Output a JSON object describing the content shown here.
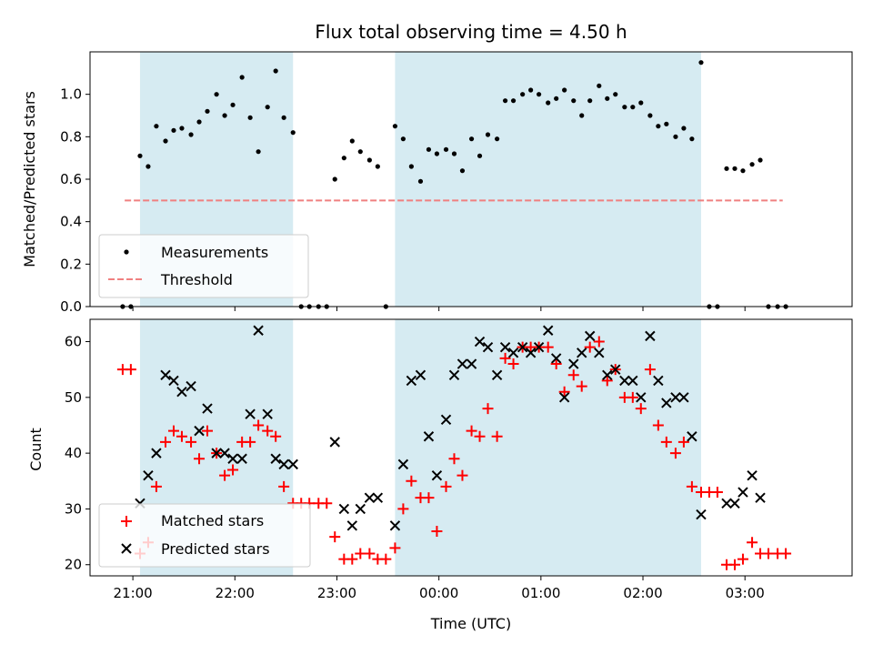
{
  "chart_data": {
    "type": "scatter",
    "title": "Flux total observing time = 4.50 h",
    "xlabel": "Time (UTC)",
    "x_tick_labels": [
      "21:00",
      "22:00",
      "23:00",
      "00:00",
      "01:00",
      "02:00",
      "03:00"
    ],
    "x_tick_hours": [
      21,
      22,
      23,
      24,
      25,
      26,
      27
    ],
    "xlim_hours": [
      20.58,
      28.05
    ],
    "shaded_intervals_hours": [
      [
        21.07,
        22.57
      ],
      [
        23.57,
        26.57
      ]
    ],
    "shade_color": "#add8e6",
    "top": {
      "ylabel": "Matched/Predicted stars",
      "ylim": [
        0,
        1.2
      ],
      "yticks": [
        0.0,
        0.2,
        0.4,
        0.6,
        0.8,
        1.0
      ],
      "ytick_labels": [
        "0.0",
        "0.2",
        "0.4",
        "0.6",
        "0.8",
        "1.0"
      ],
      "threshold": {
        "value": 0.5,
        "x_range_hours": [
          20.92,
          27.37
        ],
        "color": "#f08080"
      },
      "legend": [
        {
          "label": "Measurements",
          "marker": "dot",
          "color": "#000000"
        },
        {
          "label": "Threshold",
          "marker": "dashed-line",
          "color": "#f08080"
        }
      ],
      "measurements": [
        [
          20.9,
          0
        ],
        [
          20.98,
          0
        ],
        [
          21.07,
          0.71
        ],
        [
          21.15,
          0.66
        ],
        [
          21.23,
          0.85
        ],
        [
          21.32,
          0.78
        ],
        [
          21.4,
          0.83
        ],
        [
          21.48,
          0.84
        ],
        [
          21.57,
          0.81
        ],
        [
          21.65,
          0.87
        ],
        [
          21.73,
          0.92
        ],
        [
          21.82,
          1.0
        ],
        [
          21.9,
          0.9
        ],
        [
          21.98,
          0.95
        ],
        [
          22.07,
          1.08
        ],
        [
          22.15,
          0.89
        ],
        [
          22.23,
          0.73
        ],
        [
          22.32,
          0.94
        ],
        [
          22.4,
          1.11
        ],
        [
          22.48,
          0.89
        ],
        [
          22.57,
          0.82
        ],
        [
          22.65,
          0
        ],
        [
          22.73,
          0
        ],
        [
          22.82,
          0
        ],
        [
          22.9,
          0
        ],
        [
          22.98,
          0.6
        ],
        [
          23.07,
          0.7
        ],
        [
          23.15,
          0.78
        ],
        [
          23.23,
          0.73
        ],
        [
          23.32,
          0.69
        ],
        [
          23.4,
          0.66
        ],
        [
          23.48,
          0
        ],
        [
          23.57,
          0.85
        ],
        [
          23.65,
          0.79
        ],
        [
          23.73,
          0.66
        ],
        [
          23.82,
          0.59
        ],
        [
          23.9,
          0.74
        ],
        [
          23.98,
          0.72
        ],
        [
          24.07,
          0.74
        ],
        [
          24.15,
          0.72
        ],
        [
          24.23,
          0.64
        ],
        [
          24.32,
          0.79
        ],
        [
          24.4,
          0.71
        ],
        [
          24.48,
          0.81
        ],
        [
          24.57,
          0.79
        ],
        [
          24.65,
          0.97
        ],
        [
          24.73,
          0.97
        ],
        [
          24.82,
          1.0
        ],
        [
          24.9,
          1.02
        ],
        [
          24.98,
          1.0
        ],
        [
          25.07,
          0.96
        ],
        [
          25.15,
          0.98
        ],
        [
          25.23,
          1.02
        ],
        [
          25.32,
          0.97
        ],
        [
          25.4,
          0.9
        ],
        [
          25.48,
          0.97
        ],
        [
          25.57,
          1.04
        ],
        [
          25.65,
          0.98
        ],
        [
          25.73,
          1.0
        ],
        [
          25.82,
          0.94
        ],
        [
          25.9,
          0.94
        ],
        [
          25.98,
          0.96
        ],
        [
          26.07,
          0.9
        ],
        [
          26.15,
          0.85
        ],
        [
          26.23,
          0.86
        ],
        [
          26.32,
          0.8
        ],
        [
          26.4,
          0.84
        ],
        [
          26.48,
          0.79
        ],
        [
          26.57,
          1.15
        ],
        [
          26.65,
          0
        ],
        [
          26.73,
          0
        ],
        [
          26.82,
          0.65
        ],
        [
          26.9,
          0.65
        ],
        [
          26.98,
          0.64
        ],
        [
          27.07,
          0.67
        ],
        [
          27.15,
          0.69
        ],
        [
          27.23,
          0
        ],
        [
          27.32,
          0
        ],
        [
          27.4,
          0
        ]
      ]
    },
    "bottom": {
      "ylabel": "Count",
      "ylim": [
        18,
        64
      ],
      "yticks": [
        20,
        30,
        40,
        50,
        60
      ],
      "ytick_labels": [
        "20",
        "30",
        "40",
        "50",
        "60"
      ],
      "legend": [
        {
          "label": "Matched stars",
          "marker": "plus",
          "color": "#ff0000"
        },
        {
          "label": "Predicted stars",
          "marker": "x",
          "color": "#000000"
        }
      ],
      "series": [
        {
          "name": "Matched stars",
          "marker": "plus",
          "color": "#ff0000",
          "points": [
            [
              20.9,
              55
            ],
            [
              20.98,
              55
            ],
            [
              21.07,
              22
            ],
            [
              21.15,
              24
            ],
            [
              21.23,
              34
            ],
            [
              21.32,
              42
            ],
            [
              21.4,
              44
            ],
            [
              21.48,
              43
            ],
            [
              21.57,
              42
            ],
            [
              21.65,
              39
            ],
            [
              21.73,
              44
            ],
            [
              21.82,
              40
            ],
            [
              21.9,
              36
            ],
            [
              21.98,
              37
            ],
            [
              22.07,
              42
            ],
            [
              22.15,
              42
            ],
            [
              22.23,
              45
            ],
            [
              22.32,
              44
            ],
            [
              22.4,
              43
            ],
            [
              22.48,
              34
            ],
            [
              22.57,
              31
            ],
            [
              22.65,
              31
            ],
            [
              22.73,
              31
            ],
            [
              22.82,
              31
            ],
            [
              22.9,
              31
            ],
            [
              22.98,
              25
            ],
            [
              23.07,
              21
            ],
            [
              23.15,
              21
            ],
            [
              23.23,
              22
            ],
            [
              23.32,
              22
            ],
            [
              23.4,
              21
            ],
            [
              23.48,
              21
            ],
            [
              23.57,
              23
            ],
            [
              23.65,
              30
            ],
            [
              23.73,
              35
            ],
            [
              23.82,
              32
            ],
            [
              23.9,
              32
            ],
            [
              23.98,
              26
            ],
            [
              24.07,
              34
            ],
            [
              24.15,
              39
            ],
            [
              24.23,
              36
            ],
            [
              24.32,
              44
            ],
            [
              24.4,
              43
            ],
            [
              24.48,
              48
            ],
            [
              24.57,
              43
            ],
            [
              24.65,
              57
            ],
            [
              24.73,
              56
            ],
            [
              24.82,
              59
            ],
            [
              24.9,
              59
            ],
            [
              24.98,
              59
            ],
            [
              25.07,
              59
            ],
            [
              25.15,
              56
            ],
            [
              25.23,
              51
            ],
            [
              25.32,
              54
            ],
            [
              25.4,
              52
            ],
            [
              25.48,
              59
            ],
            [
              25.57,
              60
            ],
            [
              25.65,
              53
            ],
            [
              25.73,
              55
            ],
            [
              25.82,
              50
            ],
            [
              25.9,
              50
            ],
            [
              25.98,
              48
            ],
            [
              26.07,
              55
            ],
            [
              26.15,
              45
            ],
            [
              26.23,
              42
            ],
            [
              26.32,
              40
            ],
            [
              26.4,
              42
            ],
            [
              26.48,
              34
            ],
            [
              26.57,
              33
            ],
            [
              26.65,
              33
            ],
            [
              26.73,
              33
            ],
            [
              26.82,
              20
            ],
            [
              26.9,
              20
            ],
            [
              26.98,
              21
            ],
            [
              27.07,
              24
            ],
            [
              27.15,
              22
            ],
            [
              27.23,
              22
            ],
            [
              27.32,
              22
            ],
            [
              27.4,
              22
            ]
          ]
        },
        {
          "name": "Predicted stars",
          "marker": "x",
          "color": "#000000",
          "points": [
            [
              21.07,
              31
            ],
            [
              21.15,
              36
            ],
            [
              21.23,
              40
            ],
            [
              21.32,
              54
            ],
            [
              21.4,
              53
            ],
            [
              21.48,
              51
            ],
            [
              21.57,
              52
            ],
            [
              21.65,
              44
            ],
            [
              21.73,
              48
            ],
            [
              21.82,
              40
            ],
            [
              21.9,
              40
            ],
            [
              21.98,
              39
            ],
            [
              22.07,
              39
            ],
            [
              22.15,
              47
            ],
            [
              22.23,
              62
            ],
            [
              22.32,
              47
            ],
            [
              22.4,
              39
            ],
            [
              22.48,
              38
            ],
            [
              22.57,
              38
            ],
            [
              22.98,
              42
            ],
            [
              23.07,
              30
            ],
            [
              23.15,
              27
            ],
            [
              23.23,
              30
            ],
            [
              23.32,
              32
            ],
            [
              23.4,
              32
            ],
            [
              23.57,
              27
            ],
            [
              23.65,
              38
            ],
            [
              23.73,
              53
            ],
            [
              23.82,
              54
            ],
            [
              23.9,
              43
            ],
            [
              23.98,
              36
            ],
            [
              24.07,
              46
            ],
            [
              24.15,
              54
            ],
            [
              24.23,
              56
            ],
            [
              24.32,
              56
            ],
            [
              24.4,
              60
            ],
            [
              24.48,
              59
            ],
            [
              24.57,
              54
            ],
            [
              24.65,
              59
            ],
            [
              24.73,
              58
            ],
            [
              24.82,
              59
            ],
            [
              24.9,
              58
            ],
            [
              24.98,
              59
            ],
            [
              25.07,
              62
            ],
            [
              25.15,
              57
            ],
            [
              25.23,
              50
            ],
            [
              25.32,
              56
            ],
            [
              25.4,
              58
            ],
            [
              25.48,
              61
            ],
            [
              25.57,
              58
            ],
            [
              25.65,
              54
            ],
            [
              25.73,
              55
            ],
            [
              25.82,
              53
            ],
            [
              25.9,
              53
            ],
            [
              25.98,
              50
            ],
            [
              26.07,
              61
            ],
            [
              26.15,
              53
            ],
            [
              26.23,
              49
            ],
            [
              26.32,
              50
            ],
            [
              26.4,
              50
            ],
            [
              26.48,
              43
            ],
            [
              26.57,
              29
            ],
            [
              26.82,
              31
            ],
            [
              26.9,
              31
            ],
            [
              26.98,
              33
            ],
            [
              27.07,
              36
            ],
            [
              27.15,
              32
            ]
          ]
        }
      ]
    }
  }
}
